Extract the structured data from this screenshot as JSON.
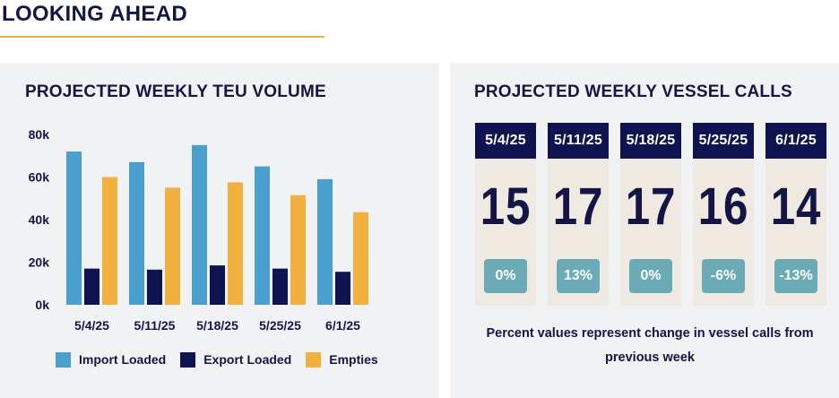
{
  "section": {
    "title": "LOOKING AHEAD"
  },
  "teu_panel": {
    "title": "PROJECTED WEEKLY TEU VOLUME"
  },
  "vessel_panel": {
    "title": "PROJECTED WEEKLY VESSEL CALLS",
    "weeks": [
      {
        "date": "5/4/25",
        "calls": "15",
        "pct": "0%"
      },
      {
        "date": "5/11/25",
        "calls": "17",
        "pct": "13%"
      },
      {
        "date": "5/18/25",
        "calls": "17",
        "pct": "0%"
      },
      {
        "date": "5/25/25",
        "calls": "16",
        "pct": "-6%"
      },
      {
        "date": "6/1/25",
        "calls": "14",
        "pct": "-13%"
      }
    ],
    "note": "Percent values represent change in vessel calls from previous week"
  },
  "chart_data": {
    "type": "bar",
    "title": "PROJECTED WEEKLY TEU VOLUME",
    "categories": [
      "5/4/25",
      "5/11/25",
      "5/18/25",
      "5/25/25",
      "6/1/25"
    ],
    "series": [
      {
        "name": "Import Loaded",
        "color": "#4b9fcf",
        "values": [
          72000,
          67000,
          75000,
          65000,
          59000
        ]
      },
      {
        "name": "Export Loaded",
        "color": "#0f1450",
        "values": [
          17000,
          16500,
          18500,
          17000,
          15500
        ]
      },
      {
        "name": "Empties",
        "color": "#f2b13f",
        "values": [
          60000,
          55000,
          57500,
          51500,
          43500
        ]
      }
    ],
    "y_ticks": [
      "0k",
      "20k",
      "40k",
      "60k",
      "80k"
    ],
    "ylim": [
      0,
      80000
    ],
    "xlabel": "",
    "ylabel": "",
    "grid": false,
    "legend": "bottom"
  }
}
